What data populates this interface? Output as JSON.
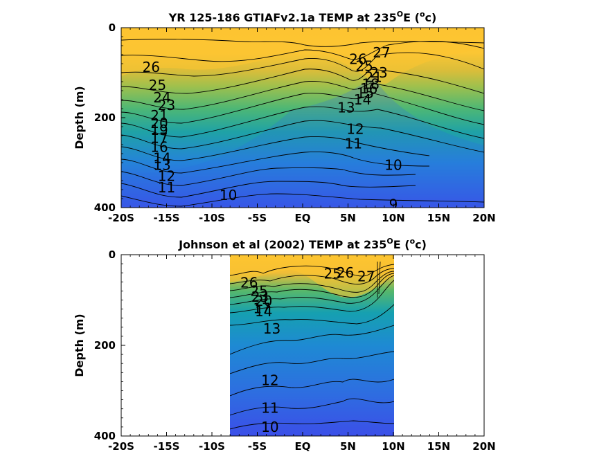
{
  "colors": {
    "warm": "#fdc431",
    "mid_warm": "#f2b62f",
    "green": "#56b86c",
    "teal": "#22a3a4",
    "cool": "#2b7fe0",
    "deep": "#3b4fe8",
    "axis": "#000000"
  },
  "chart_data": [
    {
      "type": "heatmap",
      "title_main": "YR 125-186 GTIAFv2.1a TEMP at 235",
      "title_sup": "O",
      "title_tail": "E (",
      "title_unit_sup": "o",
      "title_unit": "c)",
      "xlabel": "",
      "ylabel": "Depth (m)",
      "x_ticks": [
        "-20S",
        "-15S",
        "-10S",
        "-5S",
        "EQ",
        "5N",
        "10N",
        "15N",
        "20N"
      ],
      "x_tick_values": [
        -20,
        -15,
        -10,
        -5,
        0,
        5,
        10,
        15,
        20
      ],
      "y_ticks": [
        "0",
        "200",
        "400"
      ],
      "y_tick_values": [
        0,
        200,
        400
      ],
      "xlim": [
        -20,
        20
      ],
      "ylim": [
        0,
        400
      ],
      "data_xlim": [
        -20,
        20
      ],
      "contour_levels": [
        9,
        10,
        11,
        12,
        13,
        14,
        15,
        16,
        17,
        18,
        19,
        20,
        21,
        22,
        23,
        24,
        25,
        26,
        27
      ],
      "contour_labels": [
        {
          "text": "26",
          "x": -16.7,
          "y": 88
        },
        {
          "text": "25",
          "x": -16.0,
          "y": 128
        },
        {
          "text": "24",
          "x": -15.5,
          "y": 155
        },
        {
          "text": "23",
          "x": -15.0,
          "y": 172
        },
        {
          "text": "21",
          "x": -15.8,
          "y": 195
        },
        {
          "text": "20",
          "x": -15.8,
          "y": 212
        },
        {
          "text": "19",
          "x": -15.8,
          "y": 228
        },
        {
          "text": "17",
          "x": -15.8,
          "y": 245
        },
        {
          "text": "16",
          "x": -15.8,
          "y": 265
        },
        {
          "text": "14",
          "x": -15.5,
          "y": 290
        },
        {
          "text": "13",
          "x": -15.5,
          "y": 305
        },
        {
          "text": "12",
          "x": -15.0,
          "y": 330
        },
        {
          "text": "11",
          "x": -15.0,
          "y": 355
        },
        {
          "text": "10",
          "x": -8.2,
          "y": 372
        },
        {
          "text": "27",
          "x": 8.7,
          "y": 55
        },
        {
          "text": "26",
          "x": 6.1,
          "y": 70
        },
        {
          "text": "25",
          "x": 6.8,
          "y": 85
        },
        {
          "text": "23",
          "x": 8.4,
          "y": 100
        },
        {
          "text": "21",
          "x": 7.8,
          "y": 110
        },
        {
          "text": "18",
          "x": 7.5,
          "y": 125
        },
        {
          "text": "16",
          "x": 7.3,
          "y": 135
        },
        {
          "text": "15",
          "x": 6.9,
          "y": 145
        },
        {
          "text": "14",
          "x": 6.6,
          "y": 160
        },
        {
          "text": "13",
          "x": 4.8,
          "y": 178
        },
        {
          "text": "12",
          "x": 5.8,
          "y": 225
        },
        {
          "text": "11",
          "x": 5.6,
          "y": 258
        },
        {
          "text": "10",
          "x": 10.0,
          "y": 305
        },
        {
          "text": "9",
          "x": 10.0,
          "y": 393
        }
      ]
    },
    {
      "type": "heatmap",
      "title_main": "Johnson et al (2002) TEMP at 235",
      "title_sup": "O",
      "title_tail": "E (",
      "title_unit_sup": "o",
      "title_unit": "c)",
      "xlabel": "",
      "ylabel": "Depth (m)",
      "x_ticks": [
        "-20S",
        "-15S",
        "-10S",
        "-5S",
        "EQ",
        "5N",
        "10N",
        "15N",
        "20N"
      ],
      "x_tick_values": [
        -20,
        -15,
        -10,
        -5,
        0,
        5,
        10,
        15,
        20
      ],
      "y_ticks": [
        "0",
        "200",
        "400"
      ],
      "y_tick_values": [
        0,
        200,
        400
      ],
      "xlim": [
        -20,
        20
      ],
      "ylim": [
        0,
        400
      ],
      "data_xlim": [
        -8,
        10
      ],
      "contour_levels": [
        10,
        11,
        12,
        13,
        14,
        15,
        16,
        17,
        18,
        19,
        20,
        21,
        22,
        23,
        24,
        25,
        26,
        27
      ],
      "contour_labels": [
        {
          "text": "26",
          "x": -5.9,
          "y": 62
        },
        {
          "text": "25",
          "x": -4.8,
          "y": 80
        },
        {
          "text": "23",
          "x": -4.7,
          "y": 93
        },
        {
          "text": "20",
          "x": -4.3,
          "y": 102
        },
        {
          "text": "17",
          "x": -4.5,
          "y": 118
        },
        {
          "text": "14",
          "x": -4.3,
          "y": 125
        },
        {
          "text": "13",
          "x": -3.4,
          "y": 163
        },
        {
          "text": "25",
          "x": 3.3,
          "y": 42
        },
        {
          "text": "26",
          "x": 4.7,
          "y": 40
        },
        {
          "text": "27",
          "x": 7.0,
          "y": 48
        },
        {
          "text": "12",
          "x": -3.6,
          "y": 277
        },
        {
          "text": "11",
          "x": -3.6,
          "y": 338
        },
        {
          "text": "10",
          "x": -3.6,
          "y": 380
        }
      ]
    }
  ]
}
